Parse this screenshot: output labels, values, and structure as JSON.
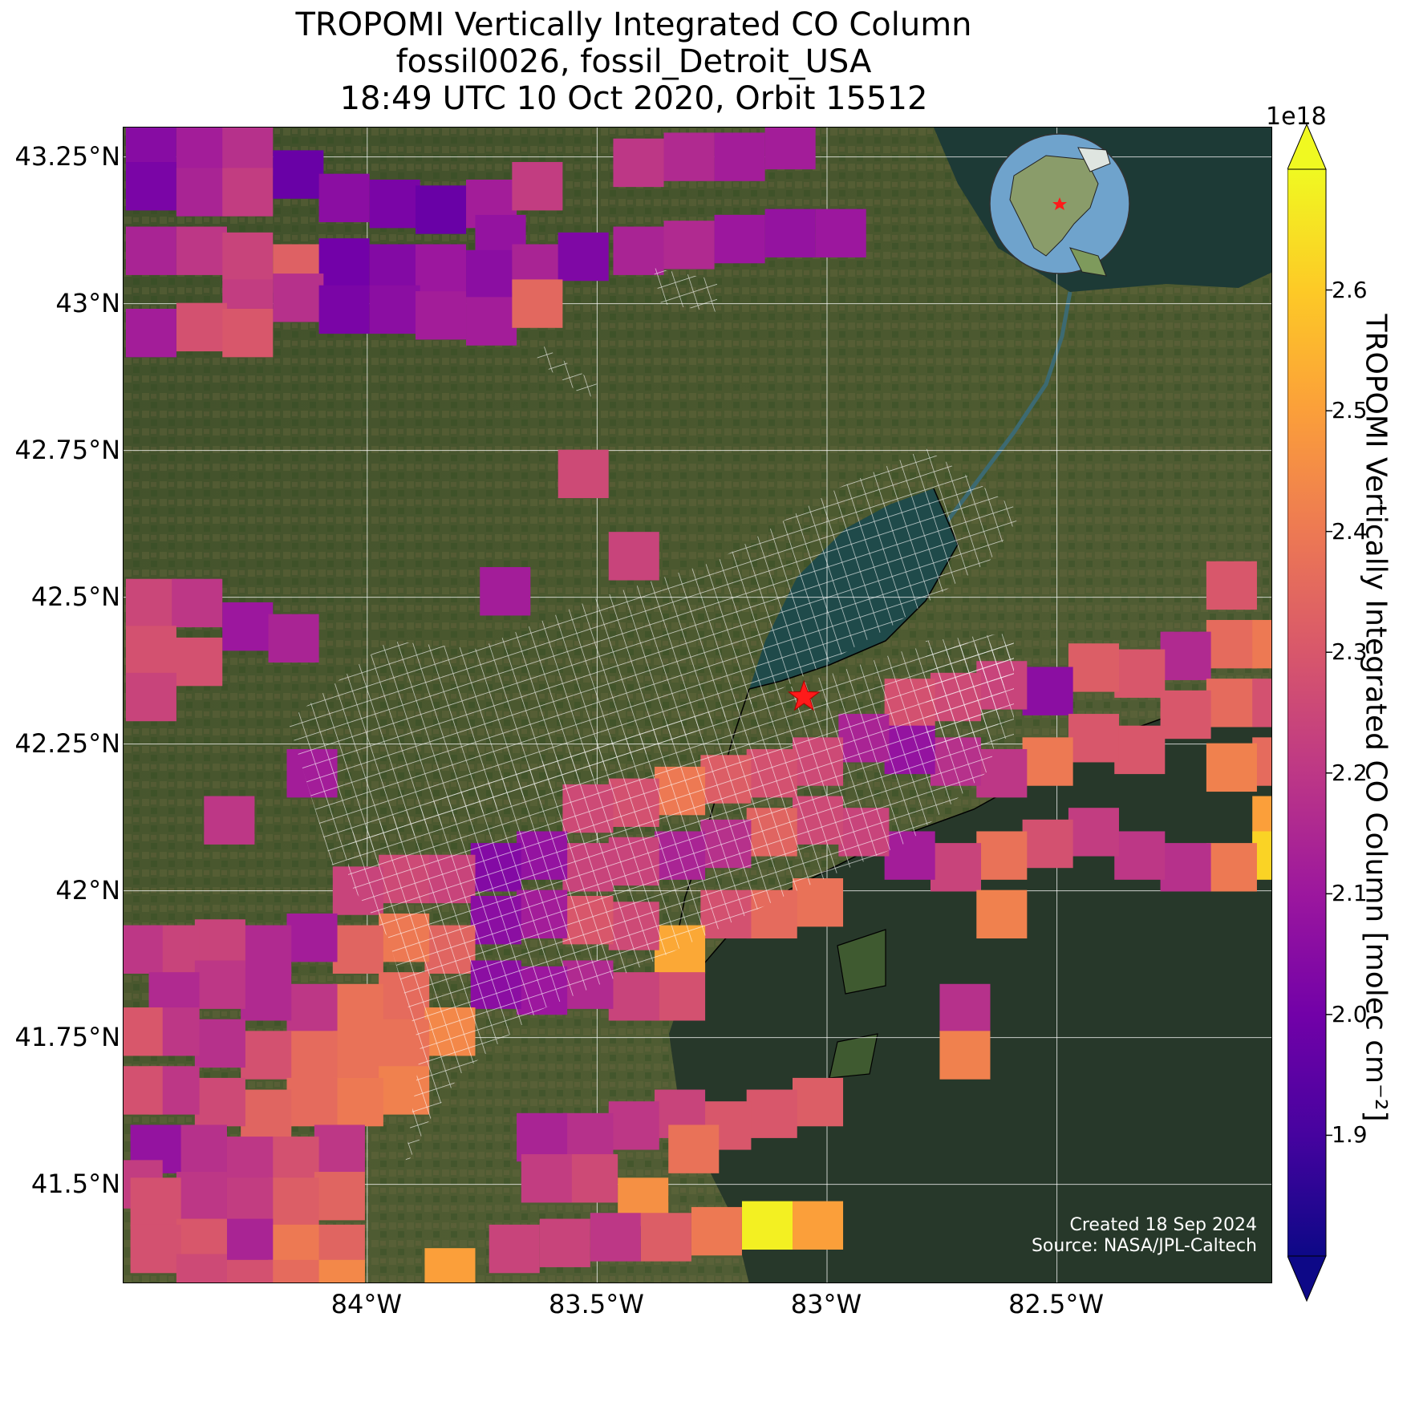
{
  "title": {
    "line1": "TROPOMI Vertically Integrated CO Column",
    "line2": "fossil0026, fossil_Detroit_USA",
    "line3": "18:49 UTC 10 Oct 2020, Orbit 15512"
  },
  "axes": {
    "lat_ticks": [
      {
        "value": 43.25,
        "label": "43.25°N"
      },
      {
        "value": 43.0,
        "label": "43°N"
      },
      {
        "value": 42.75,
        "label": "42.75°N"
      },
      {
        "value": 42.5,
        "label": "42.5°N"
      },
      {
        "value": 42.25,
        "label": "42.25°N"
      },
      {
        "value": 42.0,
        "label": "42°N"
      },
      {
        "value": 41.75,
        "label": "41.75°N"
      },
      {
        "value": 41.5,
        "label": "41.5°N"
      }
    ],
    "lon_ticks": [
      {
        "value": -84.0,
        "label": "84°W"
      },
      {
        "value": -83.5,
        "label": "83.5°W"
      },
      {
        "value": -83.0,
        "label": "83°W"
      },
      {
        "value": -82.5,
        "label": "82.5°W"
      }
    ],
    "lon_range": [
      -84.53,
      -82.03
    ],
    "lat_range": [
      41.33,
      43.3
    ]
  },
  "site": {
    "name": "fossil_Detroit_USA",
    "lon": -83.05,
    "lat": 42.33,
    "marker": "red-star"
  },
  "colorbar": {
    "label": "TROPOMI Vertically Integrated CO Column [molec cm⁻²]",
    "exponent": "1e18",
    "colormap": "plasma",
    "range": [
      1.8,
      2.7
    ],
    "extend": "both",
    "ticks": [
      "1.9",
      "2.0",
      "2.1",
      "2.2",
      "2.3",
      "2.4",
      "2.5",
      "2.6"
    ],
    "stops": [
      "#0d0887",
      "#46039f",
      "#7201a8",
      "#9c179e",
      "#bd3786",
      "#d8576b",
      "#ed7953",
      "#fb9f3a",
      "#fdca26",
      "#f0f921"
    ]
  },
  "credit": {
    "created": "Created 18 Sep 2024",
    "source": "Source: NASA/JPL-Caltech"
  },
  "inset": {
    "content": "globe-orthographic-north-america",
    "marker": "red-star"
  },
  "map_data": {
    "basemap": "satellite-imagery",
    "pixel_size_deg": 0.11,
    "pixels": [
      {
        "lon": -84.47,
        "lat": 43.28,
        "v": 2.05
      },
      {
        "lon": -84.36,
        "lat": 43.27,
        "v": 2.12
      },
      {
        "lon": -84.26,
        "lat": 43.26,
        "v": 2.18
      },
      {
        "lon": -84.47,
        "lat": 43.2,
        "v": 2.02
      },
      {
        "lon": -84.36,
        "lat": 43.19,
        "v": 2.14
      },
      {
        "lon": -84.26,
        "lat": 43.19,
        "v": 2.22
      },
      {
        "lon": -84.15,
        "lat": 43.22,
        "v": 1.98
      },
      {
        "lon": -84.05,
        "lat": 43.18,
        "v": 2.06
      },
      {
        "lon": -83.94,
        "lat": 43.17,
        "v": 2.02
      },
      {
        "lon": -83.84,
        "lat": 43.16,
        "v": 1.98
      },
      {
        "lon": -83.73,
        "lat": 43.17,
        "v": 2.12
      },
      {
        "lon": -83.63,
        "lat": 43.2,
        "v": 2.22
      },
      {
        "lon": -83.71,
        "lat": 43.11,
        "v": 2.08
      },
      {
        "lon": -84.47,
        "lat": 43.09,
        "v": 2.14
      },
      {
        "lon": -84.36,
        "lat": 43.09,
        "v": 2.2
      },
      {
        "lon": -84.26,
        "lat": 43.08,
        "v": 2.24
      },
      {
        "lon": -84.15,
        "lat": 43.06,
        "v": 2.33
      },
      {
        "lon": -84.05,
        "lat": 43.07,
        "v": 2.0
      },
      {
        "lon": -83.94,
        "lat": 43.06,
        "v": 2.04
      },
      {
        "lon": -83.84,
        "lat": 43.06,
        "v": 2.1
      },
      {
        "lon": -83.73,
        "lat": 43.05,
        "v": 2.06
      },
      {
        "lon": -83.63,
        "lat": 43.06,
        "v": 2.14
      },
      {
        "lon": -83.53,
        "lat": 43.08,
        "v": 2.03
      },
      {
        "lon": -84.26,
        "lat": 43.0,
        "v": 2.22
      },
      {
        "lon": -84.15,
        "lat": 43.01,
        "v": 2.18
      },
      {
        "lon": -84.05,
        "lat": 42.99,
        "v": 2.02
      },
      {
        "lon": -83.94,
        "lat": 42.99,
        "v": 2.06
      },
      {
        "lon": -83.84,
        "lat": 42.98,
        "v": 2.12
      },
      {
        "lon": -83.73,
        "lat": 42.97,
        "v": 2.12
      },
      {
        "lon": -83.63,
        "lat": 43.0,
        "v": 2.35
      },
      {
        "lon": -84.36,
        "lat": 42.96,
        "v": 2.28
      },
      {
        "lon": -84.26,
        "lat": 42.95,
        "v": 2.3
      },
      {
        "lon": -84.47,
        "lat": 42.95,
        "v": 2.12
      },
      {
        "lon": -83.41,
        "lat": 43.24,
        "v": 2.2
      },
      {
        "lon": -83.3,
        "lat": 43.25,
        "v": 2.16
      },
      {
        "lon": -83.19,
        "lat": 43.25,
        "v": 2.12
      },
      {
        "lon": -83.08,
        "lat": 43.27,
        "v": 2.12
      },
      {
        "lon": -83.41,
        "lat": 43.09,
        "v": 2.14
      },
      {
        "lon": -83.3,
        "lat": 43.1,
        "v": 2.16
      },
      {
        "lon": -83.19,
        "lat": 43.11,
        "v": 2.1
      },
      {
        "lon": -83.08,
        "lat": 43.12,
        "v": 2.08
      },
      {
        "lon": -82.97,
        "lat": 43.12,
        "v": 2.1
      },
      {
        "lon": -83.53,
        "lat": 42.71,
        "v": 2.26
      },
      {
        "lon": -83.42,
        "lat": 42.57,
        "v": 2.24
      },
      {
        "lon": -83.7,
        "lat": 42.51,
        "v": 2.12
      },
      {
        "lon": -84.47,
        "lat": 42.49,
        "v": 2.25
      },
      {
        "lon": -84.37,
        "lat": 42.49,
        "v": 2.2
      },
      {
        "lon": -84.26,
        "lat": 42.45,
        "v": 2.1
      },
      {
        "lon": -84.16,
        "lat": 42.43,
        "v": 2.14
      },
      {
        "lon": -84.47,
        "lat": 42.41,
        "v": 2.28
      },
      {
        "lon": -84.37,
        "lat": 42.39,
        "v": 2.28
      },
      {
        "lon": -84.47,
        "lat": 42.33,
        "v": 2.24
      },
      {
        "lon": -84.12,
        "lat": 42.2,
        "v": 2.12
      },
      {
        "lon": -84.3,
        "lat": 42.12,
        "v": 2.2
      },
      {
        "lon": -82.12,
        "lat": 42.52,
        "v": 2.3
      },
      {
        "lon": -82.12,
        "lat": 42.42,
        "v": 2.36
      },
      {
        "lon": -82.02,
        "lat": 42.42,
        "v": 2.4
      },
      {
        "lon": -82.22,
        "lat": 42.4,
        "v": 2.16
      },
      {
        "lon": -82.32,
        "lat": 42.37,
        "v": 2.3
      },
      {
        "lon": -82.12,
        "lat": 42.32,
        "v": 2.36
      },
      {
        "lon": -82.02,
        "lat": 42.32,
        "v": 2.28
      },
      {
        "lon": -82.42,
        "lat": 42.38,
        "v": 2.32
      },
      {
        "lon": -82.52,
        "lat": 42.34,
        "v": 2.06
      },
      {
        "lon": -82.62,
        "lat": 42.35,
        "v": 2.24
      },
      {
        "lon": -82.72,
        "lat": 42.33,
        "v": 2.26
      },
      {
        "lon": -82.82,
        "lat": 42.32,
        "v": 2.28
      },
      {
        "lon": -82.22,
        "lat": 42.3,
        "v": 2.3
      },
      {
        "lon": -82.02,
        "lat": 42.22,
        "v": 2.36
      },
      {
        "lon": -82.12,
        "lat": 42.21,
        "v": 2.42
      },
      {
        "lon": -82.32,
        "lat": 42.24,
        "v": 2.3
      },
      {
        "lon": -82.42,
        "lat": 42.26,
        "v": 2.3
      },
      {
        "lon": -82.52,
        "lat": 42.22,
        "v": 2.4
      },
      {
        "lon": -82.62,
        "lat": 42.2,
        "v": 2.2
      },
      {
        "lon": -82.72,
        "lat": 42.22,
        "v": 2.18
      },
      {
        "lon": -82.82,
        "lat": 42.24,
        "v": 2.08
      },
      {
        "lon": -82.92,
        "lat": 42.26,
        "v": 2.14
      },
      {
        "lon": -83.02,
        "lat": 42.22,
        "v": 2.26
      },
      {
        "lon": -83.12,
        "lat": 42.2,
        "v": 2.28
      },
      {
        "lon": -83.22,
        "lat": 42.19,
        "v": 2.32
      },
      {
        "lon": -83.32,
        "lat": 42.17,
        "v": 2.4
      },
      {
        "lon": -83.42,
        "lat": 42.15,
        "v": 2.28
      },
      {
        "lon": -83.52,
        "lat": 42.14,
        "v": 2.26
      },
      {
        "lon": -82.02,
        "lat": 42.12,
        "v": 2.5
      },
      {
        "lon": -82.02,
        "lat": 42.06,
        "v": 2.62
      },
      {
        "lon": -82.12,
        "lat": 42.04,
        "v": 2.4
      },
      {
        "lon": -82.22,
        "lat": 42.04,
        "v": 2.18
      },
      {
        "lon": -82.32,
        "lat": 42.06,
        "v": 2.2
      },
      {
        "lon": -82.42,
        "lat": 42.1,
        "v": 2.22
      },
      {
        "lon": -82.52,
        "lat": 42.08,
        "v": 2.28
      },
      {
        "lon": -82.62,
        "lat": 42.06,
        "v": 2.38
      },
      {
        "lon": -82.72,
        "lat": 42.04,
        "v": 2.24
      },
      {
        "lon": -82.82,
        "lat": 42.06,
        "v": 2.12
      },
      {
        "lon": -82.92,
        "lat": 42.1,
        "v": 2.24
      },
      {
        "lon": -83.02,
        "lat": 42.12,
        "v": 2.26
      },
      {
        "lon": -83.12,
        "lat": 42.1,
        "v": 2.34
      },
      {
        "lon": -83.22,
        "lat": 42.08,
        "v": 2.18
      },
      {
        "lon": -83.32,
        "lat": 42.06,
        "v": 2.14
      },
      {
        "lon": -83.42,
        "lat": 42.05,
        "v": 2.24
      },
      {
        "lon": -83.52,
        "lat": 42.04,
        "v": 2.24
      },
      {
        "lon": -83.62,
        "lat": 42.06,
        "v": 2.08
      },
      {
        "lon": -83.72,
        "lat": 42.04,
        "v": 2.04
      },
      {
        "lon": -83.82,
        "lat": 42.02,
        "v": 2.24
      },
      {
        "lon": -83.92,
        "lat": 42.02,
        "v": 2.26
      },
      {
        "lon": -84.02,
        "lat": 42.0,
        "v": 2.24
      },
      {
        "lon": -82.62,
        "lat": 41.96,
        "v": 2.42
      },
      {
        "lon": -83.02,
        "lat": 41.98,
        "v": 2.38
      },
      {
        "lon": -83.12,
        "lat": 41.96,
        "v": 2.36
      },
      {
        "lon": -83.22,
        "lat": 41.96,
        "v": 2.28
      },
      {
        "lon": -83.32,
        "lat": 41.9,
        "v": 2.52
      },
      {
        "lon": -83.42,
        "lat": 41.94,
        "v": 2.26
      },
      {
        "lon": -83.52,
        "lat": 41.95,
        "v": 2.3
      },
      {
        "lon": -83.62,
        "lat": 41.96,
        "v": 2.12
      },
      {
        "lon": -83.72,
        "lat": 41.95,
        "v": 2.06
      },
      {
        "lon": -83.82,
        "lat": 41.9,
        "v": 2.34
      },
      {
        "lon": -83.92,
        "lat": 41.92,
        "v": 2.4
      },
      {
        "lon": -84.02,
        "lat": 41.9,
        "v": 2.34
      },
      {
        "lon": -84.12,
        "lat": 41.92,
        "v": 2.12
      },
      {
        "lon": -84.22,
        "lat": 41.9,
        "v": 2.16
      },
      {
        "lon": -84.32,
        "lat": 41.91,
        "v": 2.24
      },
      {
        "lon": -84.42,
        "lat": 41.9,
        "v": 2.24
      },
      {
        "lon": -84.5,
        "lat": 41.9,
        "v": 2.2
      },
      {
        "lon": -83.32,
        "lat": 41.82,
        "v": 2.28
      },
      {
        "lon": -83.42,
        "lat": 41.82,
        "v": 2.24
      },
      {
        "lon": -83.52,
        "lat": 41.84,
        "v": 2.16
      },
      {
        "lon": -83.62,
        "lat": 41.83,
        "v": 2.1
      },
      {
        "lon": -83.72,
        "lat": 41.84,
        "v": 2.06
      },
      {
        "lon": -83.92,
        "lat": 41.82,
        "v": 2.36
      },
      {
        "lon": -84.02,
        "lat": 41.8,
        "v": 2.38
      },
      {
        "lon": -84.12,
        "lat": 41.8,
        "v": 2.2
      },
      {
        "lon": -84.22,
        "lat": 41.82,
        "v": 2.16
      },
      {
        "lon": -84.32,
        "lat": 41.84,
        "v": 2.2
      },
      {
        "lon": -84.42,
        "lat": 41.82,
        "v": 2.16
      },
      {
        "lon": -82.7,
        "lat": 41.8,
        "v": 2.18
      },
      {
        "lon": -82.7,
        "lat": 41.72,
        "v": 2.42
      },
      {
        "lon": -83.82,
        "lat": 41.76,
        "v": 2.44
      },
      {
        "lon": -83.92,
        "lat": 41.74,
        "v": 2.38
      },
      {
        "lon": -84.02,
        "lat": 41.72,
        "v": 2.38
      },
      {
        "lon": -84.12,
        "lat": 41.72,
        "v": 2.36
      },
      {
        "lon": -84.22,
        "lat": 41.72,
        "v": 2.28
      },
      {
        "lon": -84.32,
        "lat": 41.74,
        "v": 2.18
      },
      {
        "lon": -84.42,
        "lat": 41.76,
        "v": 2.2
      },
      {
        "lon": -84.5,
        "lat": 41.76,
        "v": 2.3
      },
      {
        "lon": -83.92,
        "lat": 41.66,
        "v": 2.42
      },
      {
        "lon": -84.02,
        "lat": 41.64,
        "v": 2.4
      },
      {
        "lon": -84.12,
        "lat": 41.64,
        "v": 2.36
      },
      {
        "lon": -84.22,
        "lat": 41.62,
        "v": 2.34
      },
      {
        "lon": -84.32,
        "lat": 41.64,
        "v": 2.26
      },
      {
        "lon": -84.42,
        "lat": 41.66,
        "v": 2.2
      },
      {
        "lon": -84.5,
        "lat": 41.66,
        "v": 2.28
      },
      {
        "lon": -83.02,
        "lat": 41.64,
        "v": 2.32
      },
      {
        "lon": -83.12,
        "lat": 41.62,
        "v": 2.3
      },
      {
        "lon": -83.22,
        "lat": 41.6,
        "v": 2.3
      },
      {
        "lon": -83.32,
        "lat": 41.62,
        "v": 2.24
      },
      {
        "lon": -83.42,
        "lat": 41.6,
        "v": 2.2
      },
      {
        "lon": -83.52,
        "lat": 41.58,
        "v": 2.18
      },
      {
        "lon": -83.62,
        "lat": 41.58,
        "v": 2.14
      },
      {
        "lon": -84.06,
        "lat": 41.56,
        "v": 2.2
      },
      {
        "lon": -84.16,
        "lat": 41.54,
        "v": 2.28
      },
      {
        "lon": -84.26,
        "lat": 41.54,
        "v": 2.2
      },
      {
        "lon": -84.36,
        "lat": 41.56,
        "v": 2.18
      },
      {
        "lon": -84.46,
        "lat": 41.56,
        "v": 2.08
      },
      {
        "lon": -84.5,
        "lat": 41.5,
        "v": 2.22
      },
      {
        "lon": -83.29,
        "lat": 41.56,
        "v": 2.38
      },
      {
        "lon": -83.51,
        "lat": 41.51,
        "v": 2.26
      },
      {
        "lon": -83.61,
        "lat": 41.51,
        "v": 2.22
      },
      {
        "lon": -84.06,
        "lat": 41.48,
        "v": 2.34
      },
      {
        "lon": -84.16,
        "lat": 41.47,
        "v": 2.32
      },
      {
        "lon": -84.26,
        "lat": 41.47,
        "v": 2.22
      },
      {
        "lon": -84.36,
        "lat": 41.48,
        "v": 2.2
      },
      {
        "lon": -84.46,
        "lat": 41.47,
        "v": 2.28
      },
      {
        "lon": -83.4,
        "lat": 41.47,
        "v": 2.46
      },
      {
        "lon": -83.02,
        "lat": 41.43,
        "v": 2.5
      },
      {
        "lon": -83.13,
        "lat": 41.43,
        "v": 2.68
      },
      {
        "lon": -83.24,
        "lat": 41.42,
        "v": 2.4
      },
      {
        "lon": -83.35,
        "lat": 41.41,
        "v": 2.32
      },
      {
        "lon": -83.46,
        "lat": 41.41,
        "v": 2.2
      },
      {
        "lon": -83.57,
        "lat": 41.4,
        "v": 2.24
      },
      {
        "lon": -83.68,
        "lat": 41.39,
        "v": 2.24
      },
      {
        "lon": -84.06,
        "lat": 41.39,
        "v": 2.34
      },
      {
        "lon": -84.16,
        "lat": 41.39,
        "v": 2.4
      },
      {
        "lon": -84.26,
        "lat": 41.4,
        "v": 2.14
      },
      {
        "lon": -84.36,
        "lat": 41.4,
        "v": 2.3
      },
      {
        "lon": -84.46,
        "lat": 41.39,
        "v": 2.28
      },
      {
        "lon": -84.06,
        "lat": 41.33,
        "v": 2.44
      },
      {
        "lon": -84.16,
        "lat": 41.33,
        "v": 2.36
      },
      {
        "lon": -84.26,
        "lat": 41.33,
        "v": 2.28
      },
      {
        "lon": -84.36,
        "lat": 41.34,
        "v": 2.26
      },
      {
        "lon": -83.82,
        "lat": 41.35,
        "v": 2.5
      }
    ]
  }
}
